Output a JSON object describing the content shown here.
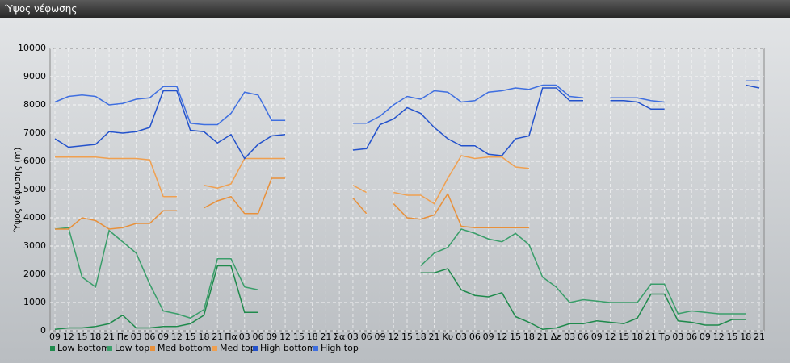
{
  "chart_data": {
    "type": "line",
    "title": "Ύψος νέφωσης",
    "ylabel": "Ύψος νέφωσης (m)",
    "categories": [
      "09",
      "12",
      "15",
      "18",
      "21",
      "Πε",
      "03",
      "06",
      "09",
      "12",
      "15",
      "18",
      "21",
      "Πα",
      "03",
      "06",
      "09",
      "12",
      "15",
      "18",
      "21",
      "Σα",
      "03",
      "06",
      "09",
      "12",
      "15",
      "18",
      "21",
      "Κυ",
      "03",
      "06",
      "09",
      "12",
      "15",
      "18",
      "21",
      "Δε",
      "03",
      "06",
      "09",
      "12",
      "15",
      "18",
      "21",
      "Τρ",
      "03",
      "06",
      "09",
      "12",
      "15",
      "18",
      "21"
    ],
    "ylim": [
      0,
      10000
    ],
    "yticks": [
      0,
      1000,
      2000,
      3000,
      4000,
      5000,
      6000,
      7000,
      8000,
      9000,
      10000
    ],
    "grid": true,
    "series": [
      {
        "name": "Low bottom",
        "color": "#1f8a4c",
        "values": [
          50,
          100,
          100,
          150,
          250,
          550,
          100,
          100,
          150,
          150,
          250,
          550,
          2300,
          2300,
          650,
          650,
          null,
          null,
          null,
          null,
          null,
          null,
          null,
          null,
          null,
          null,
          null,
          2050,
          2050,
          2200,
          1450,
          1250,
          1200,
          1350,
          500,
          300,
          50,
          100,
          250,
          250,
          350,
          300,
          250,
          450,
          1300,
          1300,
          350,
          300,
          200,
          200,
          400,
          400,
          null
        ]
      },
      {
        "name": "Low top",
        "color": "#3a9e6a",
        "values": [
          3600,
          3650,
          1900,
          1550,
          3550,
          3150,
          2750,
          1650,
          700,
          600,
          450,
          750,
          2550,
          2550,
          1550,
          1450,
          null,
          null,
          null,
          null,
          null,
          null,
          null,
          null,
          null,
          null,
          null,
          2300,
          2750,
          2950,
          3600,
          3450,
          3250,
          3150,
          3450,
          3050,
          1900,
          1550,
          1000,
          1100,
          1050,
          1000,
          1000,
          1000,
          1650,
          1650,
          600,
          700,
          650,
          600,
          600,
          600,
          null
        ]
      },
      {
        "name": "Med bottom",
        "color": "#e8903a",
        "values": [
          3600,
          3600,
          4000,
          3900,
          3600,
          3650,
          3800,
          3800,
          4250,
          4250,
          null,
          4350,
          4600,
          4750,
          4150,
          4150,
          5400,
          5400,
          null,
          null,
          null,
          null,
          4700,
          4150,
          null,
          4500,
          4000,
          3950,
          4100,
          4850,
          3700,
          3650,
          3650,
          3650,
          3650,
          3650,
          null,
          null,
          null,
          null,
          null,
          null,
          null,
          null,
          null,
          null,
          null,
          null,
          null,
          null,
          null,
          null,
          null
        ]
      },
      {
        "name": "Med top",
        "color": "#f0a050",
        "values": [
          6150,
          6150,
          6150,
          6150,
          6100,
          6100,
          6100,
          6050,
          4750,
          4750,
          null,
          5150,
          5050,
          5200,
          6100,
          6100,
          6100,
          6100,
          null,
          null,
          null,
          null,
          5150,
          4900,
          null,
          4900,
          4800,
          4800,
          4500,
          5400,
          6200,
          6100,
          6150,
          6150,
          5800,
          5750,
          null,
          null,
          null,
          null,
          null,
          null,
          null,
          null,
          null,
          null,
          null,
          null,
          null,
          null,
          null,
          null,
          null
        ]
      },
      {
        "name": "High bottom",
        "color": "#2352cc",
        "values": [
          6800,
          6500,
          6550,
          6600,
          7050,
          7000,
          7050,
          7200,
          8500,
          8500,
          7100,
          7050,
          6650,
          6950,
          6100,
          6600,
          6900,
          6950,
          null,
          null,
          null,
          null,
          6400,
          6450,
          7300,
          7500,
          7900,
          7700,
          7200,
          6800,
          6550,
          6550,
          6250,
          6200,
          6800,
          6900,
          8600,
          8600,
          8150,
          8150,
          null,
          8150,
          8150,
          8100,
          7850,
          7850,
          null,
          null,
          null,
          null,
          null,
          8700,
          8600
        ]
      },
      {
        "name": "High top",
        "color": "#3f6fe0",
        "values": [
          8100,
          8300,
          8350,
          8300,
          8000,
          8050,
          8200,
          8250,
          8650,
          8650,
          7350,
          7300,
          7300,
          7700,
          8450,
          8350,
          7450,
          7450,
          null,
          null,
          null,
          null,
          7350,
          7350,
          7600,
          8000,
          8300,
          8200,
          8500,
          8450,
          8100,
          8150,
          8450,
          8500,
          8600,
          8550,
          8700,
          8700,
          8300,
          8250,
          null,
          8250,
          8250,
          8250,
          8150,
          8100,
          null,
          null,
          null,
          null,
          null,
          8850,
          8850
        ]
      }
    ]
  }
}
